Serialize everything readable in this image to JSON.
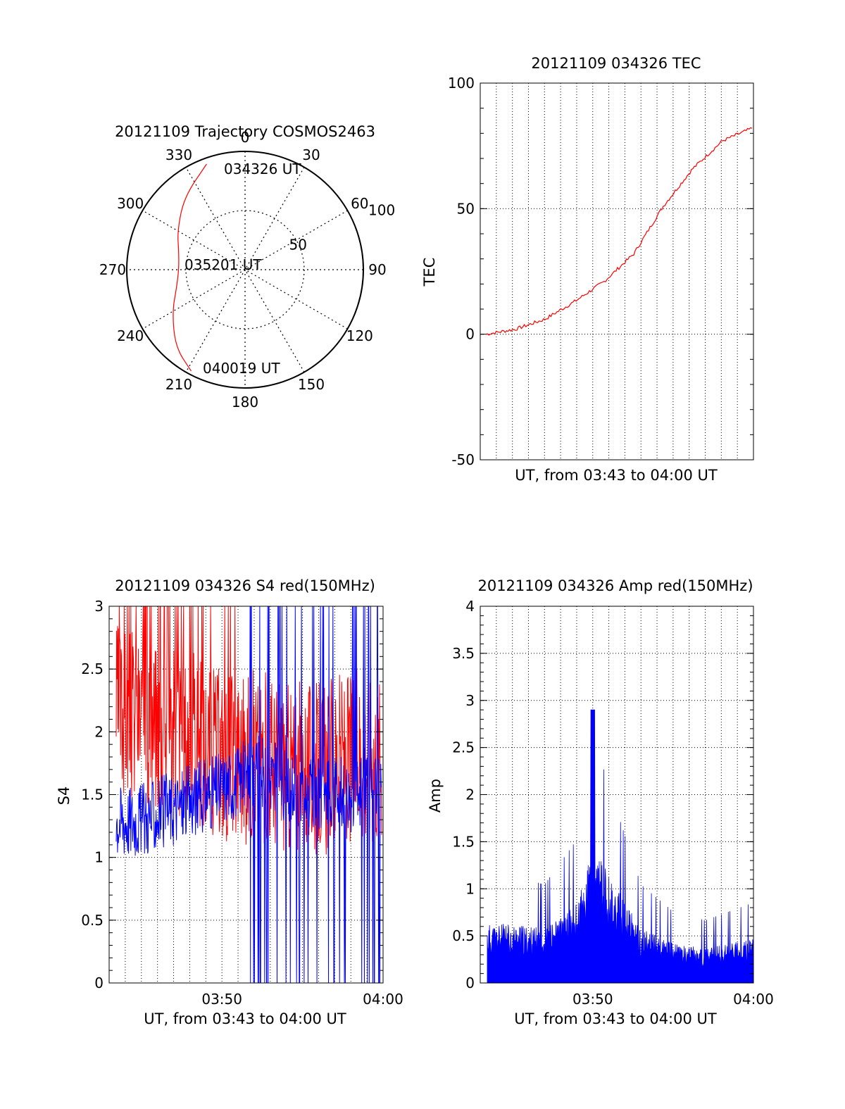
{
  "figure": {
    "colors": {
      "red": "#ff0000",
      "blue": "#0000ff",
      "axis": "#000000"
    }
  },
  "chart_data": [
    {
      "type": "polar",
      "title": "20121109 Trajectory COSMOS2463",
      "angle_labels": [
        "0",
        "30",
        "60",
        "90",
        "120",
        "150",
        "180",
        "210",
        "240",
        "270",
        "300",
        "330"
      ],
      "radial_labels": [
        "50",
        "100"
      ],
      "radial_range": [
        0,
        100
      ],
      "annotations": [
        "034326 UT",
        "035201 UT",
        "040019 UT"
      ],
      "series": [
        {
          "color": "red",
          "azimuth": [
            340,
            320,
            300,
            285,
            270,
            255,
            240,
            222,
            208
          ],
          "radial": [
            95,
            80,
            66,
            58,
            56,
            60,
            71,
            88,
            97
          ]
        }
      ]
    },
    {
      "type": "line",
      "title": "20121109 034326 TEC",
      "ylabel": "TEC",
      "xlabel": "UT, from 03:43 to 04:00 UT",
      "ylim": [
        -50,
        100
      ],
      "yticks": [
        "100",
        "50",
        "0",
        "-50"
      ],
      "x": [
        "03:43",
        "03:45",
        "03:47",
        "03:49",
        "03:51",
        "03:53",
        "03:55",
        "03:57",
        "03:59",
        "04:00"
      ],
      "series": [
        {
          "color": "red",
          "values": [
            0,
            2,
            6,
            13,
            21,
            32,
            51,
            66,
            77,
            82
          ]
        }
      ]
    },
    {
      "type": "line",
      "title": "20121109 034326 S4 red(150MHz)",
      "ylabel": "S4",
      "xlabel": "UT, from 03:43 to 04:00 UT",
      "ylim": [
        0,
        3
      ],
      "yticks": [
        "3",
        "2.5",
        "2",
        "1.5",
        "1",
        "0.5",
        "0"
      ],
      "xticks": [
        "03:50",
        "04:00"
      ],
      "x_range": [
        "03:43",
        "04:00"
      ],
      "series": [
        {
          "color": "red",
          "description_values": [
            2.2,
            2.1,
            2.0,
            1.9,
            1.8,
            1.8,
            1.7,
            1.7,
            1.8,
            1.8
          ]
        },
        {
          "color": "blue",
          "description_values": [
            1.3,
            1.3,
            1.4,
            1.5,
            1.6,
            1.7,
            1.5,
            1.5,
            1.5,
            1.6
          ]
        }
      ]
    },
    {
      "type": "line",
      "title": "20121109 034326 Amp red(150MHz)",
      "ylabel": "Amp",
      "xlabel": "UT, from 03:43 to 04:00 UT",
      "ylim": [
        0,
        4
      ],
      "yticks": [
        "4",
        "3.5",
        "3",
        "2.5",
        "2",
        "1.5",
        "1",
        "0.5",
        "0"
      ],
      "xticks": [
        "03:50",
        "04:00"
      ],
      "x_range": [
        "03:43",
        "04:00"
      ],
      "series": [
        {
          "color": "blue",
          "x": [
            "03:43",
            "03:45",
            "03:47",
            "03:49",
            "03:50",
            "03:51",
            "03:53",
            "03:55",
            "03:57",
            "04:00"
          ],
          "values": [
            0.6,
            0.6,
            0.55,
            0.8,
            1.4,
            1.1,
            0.55,
            0.4,
            0.35,
            0.45
          ]
        }
      ]
    }
  ]
}
